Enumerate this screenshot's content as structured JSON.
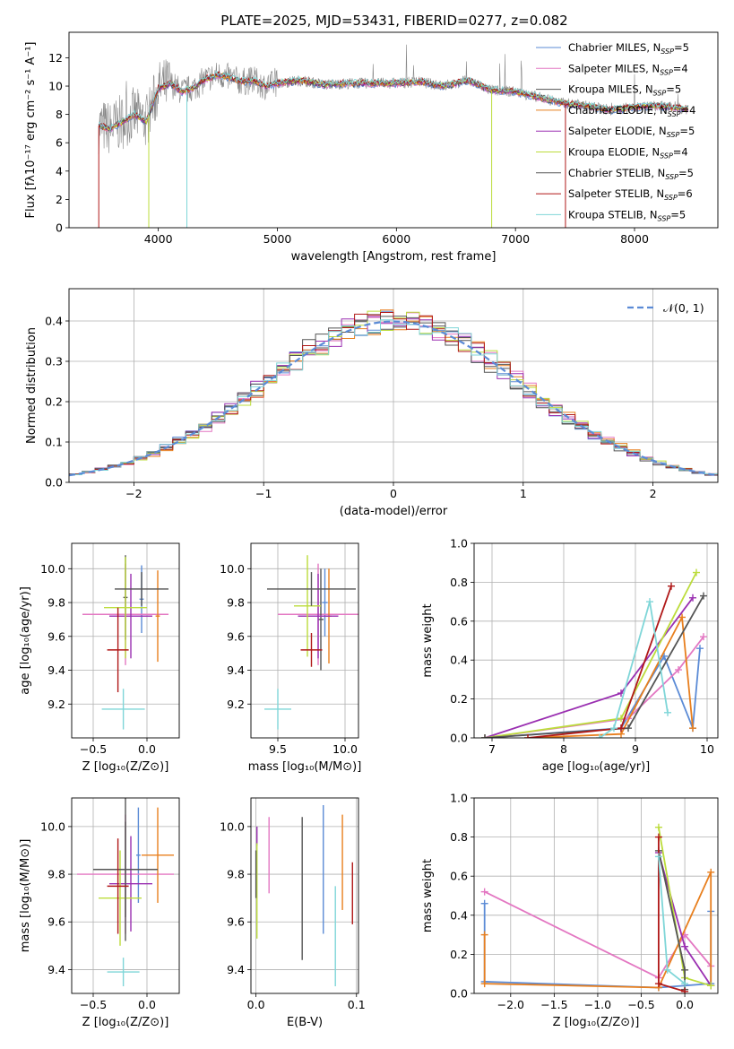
{
  "figure": {
    "title": "PLATE=2025, MJD=53431, FIBERID=0277, z=0.082"
  },
  "colors": {
    "chabrier_miles": "#5b8bd6",
    "salpeter_miles": "#e377c2",
    "kroupa_miles": "#555555",
    "chabrier_elodie": "#e87f1e",
    "salpeter_elodie": "#9a2fb1",
    "kroupa_elodie": "#bcdc3c",
    "chabrier_stelib": "#555555",
    "salpeter_stelib": "#b01818",
    "kroupa_stelib": "#7fd6d8"
  },
  "chart_data": [
    {
      "id": "spectrum",
      "type": "line",
      "xlabel": "wavelength [Angstrom, rest frame]",
      "ylabel": "Flux [fλ10⁻¹⁷ erg cm⁻² s⁻¹ A⁻¹]",
      "xlim": [
        3250,
        8700
      ],
      "ylim": [
        0,
        13.8
      ],
      "xticks": [
        "4000",
        "5000",
        "6000",
        "7000",
        "8000"
      ],
      "yticks": [
        "0",
        "2",
        "4",
        "6",
        "8",
        "10",
        "12"
      ],
      "legend_placement": "right",
      "legend": [
        "Chabrier MILES, N_SSP=5",
        "Salpeter MILES, N_SSP=4",
        "Kroupa MILES, N_SSP=5",
        "Chabrier ELODIE, N_SSP=4",
        "Salpeter ELODIE, N_SSP=5",
        "Kroupa ELODIE, N_SSP=4",
        "Chabrier STELIB, N_SSP=5",
        "Salpeter STELIB, N_SSP=6",
        "Kroupa STELIB, N_SSP=5"
      ],
      "data_x": [
        3500,
        3600,
        3700,
        3800,
        3900,
        4000,
        4100,
        4200,
        4300,
        4400,
        4500,
        4600,
        4700,
        4800,
        4900,
        5000,
        5200,
        5400,
        5600,
        5800,
        6000,
        6200,
        6400,
        6600,
        6800,
        7000,
        7200,
        7400,
        7600,
        7800,
        8000,
        8200,
        8400
      ],
      "data_y": [
        7.2,
        7.0,
        7.5,
        8.0,
        7.5,
        9.8,
        10.2,
        9.6,
        9.9,
        10.5,
        10.8,
        10.6,
        10.3,
        10.4,
        10.0,
        10.2,
        10.4,
        10.1,
        10.2,
        10.2,
        10.2,
        10.3,
        10.0,
        10.4,
        9.7,
        9.6,
        9.2,
        8.8,
        8.6,
        8.3,
        8.5,
        8.6,
        8.4
      ]
    },
    {
      "id": "residuals",
      "type": "bar",
      "xlabel": "(data-model)/error",
      "ylabel": "Normed distribution",
      "xlim": [
        -2.5,
        2.5
      ],
      "ylim": [
        0,
        0.48
      ],
      "xticks": [
        "−2",
        "−1",
        "0",
        "1",
        "2"
      ],
      "yticks": [
        "0.0",
        "0.1",
        "0.2",
        "0.3",
        "0.4"
      ],
      "legend": [
        "𝒩(0, 1)"
      ],
      "bin_width": 0.1,
      "series_offsets": [
        0.02,
        -0.015,
        0.01,
        -0.02,
        0.015,
        -0.01,
        0.025,
        -0.005,
        0.005
      ]
    },
    {
      "id": "age_vs_Z",
      "type": "scatter",
      "xlabel": "Z [log₁₀(Z/Z⊙)]",
      "ylabel": "age  [log₁₀(age/yr)]",
      "xlim": [
        -0.7,
        0.3
      ],
      "ylim": [
        9.0,
        10.15
      ],
      "xticks": [
        "−0.5",
        "0.0"
      ],
      "yticks": [
        "9.2",
        "9.4",
        "9.6",
        "9.8",
        "10.0"
      ],
      "points": [
        {
          "x": -0.05,
          "y": 9.82,
          "xerr": 0.02,
          "yerr": 0.2
        },
        {
          "x": -0.2,
          "y": 9.73,
          "xerr": 0.4,
          "yerr": 0.3
        },
        {
          "x": -0.2,
          "y": 9.83,
          "xerr": 0.02,
          "yerr": 0.25
        },
        {
          "x": 0.1,
          "y": 9.72,
          "xerr": 0.02,
          "yerr": 0.27
        },
        {
          "x": -0.15,
          "y": 9.72,
          "xerr": 0.2,
          "yerr": 0.25
        },
        {
          "x": -0.2,
          "y": 9.77,
          "xerr": 0.2,
          "yerr": 0.3
        },
        {
          "x": -0.05,
          "y": 9.88,
          "xerr": 0.25,
          "yerr": 0.1
        },
        {
          "x": -0.27,
          "y": 9.52,
          "xerr": 0.1,
          "yerr": 0.25
        },
        {
          "x": -0.22,
          "y": 9.17,
          "xerr": 0.2,
          "yerr": 0.12
        }
      ]
    },
    {
      "id": "age_vs_mass",
      "type": "scatter",
      "xlabel": "mass [log₁₀(M/M⊙)]",
      "ylabel": "",
      "xlim": [
        9.3,
        10.1
      ],
      "ylim": [
        9.0,
        10.15
      ],
      "xticks": [
        "9.5",
        "10.0"
      ],
      "yticks": [
        "9.2",
        "9.4",
        "9.6",
        "9.8",
        "10.0"
      ],
      "points": [
        {
          "x": 9.85,
          "y": 9.8,
          "xerr": 0.02,
          "yerr": 0.2
        },
        {
          "x": 9.8,
          "y": 9.73,
          "xerr": 0.3,
          "yerr": 0.3
        },
        {
          "x": 9.82,
          "y": 9.7,
          "xerr": 0.02,
          "yerr": 0.3
        },
        {
          "x": 9.88,
          "y": 9.72,
          "xerr": 0.02,
          "yerr": 0.28
        },
        {
          "x": 9.8,
          "y": 9.72,
          "xerr": 0.15,
          "yerr": 0.25
        },
        {
          "x": 9.72,
          "y": 9.78,
          "xerr": 0.1,
          "yerr": 0.3
        },
        {
          "x": 9.75,
          "y": 9.88,
          "xerr": 0.33,
          "yerr": 0.1
        },
        {
          "x": 9.75,
          "y": 9.52,
          "xerr": 0.08,
          "yerr": 0.1
        },
        {
          "x": 9.5,
          "y": 9.17,
          "xerr": 0.1,
          "yerr": 0.12
        }
      ]
    },
    {
      "id": "weight_vs_age",
      "type": "line",
      "xlabel": "age  [log₁₀(age/yr)]",
      "ylabel": "mass weight",
      "xlim": [
        6.75,
        10.15
      ],
      "ylim": [
        0,
        1.0
      ],
      "xticks": [
        "7",
        "8",
        "9",
        "10"
      ],
      "yticks": [
        "0.0",
        "0.2",
        "0.4",
        "0.6",
        "0.8",
        "1.0"
      ],
      "series": [
        {
          "color": "chabrier_miles",
          "x": [
            6.9,
            8.8,
            9.4,
            9.8,
            9.9
          ],
          "y": [
            0.0,
            0.05,
            0.42,
            0.05,
            0.46
          ]
        },
        {
          "color": "salpeter_miles",
          "x": [
            6.9,
            8.9,
            9.6,
            9.95
          ],
          "y": [
            0.0,
            0.1,
            0.35,
            0.52
          ]
        },
        {
          "color": "chabrier_elodie",
          "x": [
            7.5,
            8.8,
            9.65,
            9.8
          ],
          "y": [
            0.0,
            0.02,
            0.62,
            0.05
          ]
        },
        {
          "color": "salpeter_elodie",
          "x": [
            6.9,
            8.8,
            9.8
          ],
          "y": [
            0.0,
            0.23,
            0.72
          ]
        },
        {
          "color": "kroupa_elodie",
          "x": [
            6.9,
            8.8,
            9.85
          ],
          "y": [
            0.0,
            0.1,
            0.85
          ]
        },
        {
          "color": "chabrier_stelib",
          "x": [
            6.9,
            8.9,
            9.95
          ],
          "y": [
            0.0,
            0.05,
            0.73
          ]
        },
        {
          "color": "salpeter_stelib",
          "x": [
            7.5,
            8.8,
            9.5
          ],
          "y": [
            0.0,
            0.05,
            0.78
          ]
        },
        {
          "color": "kroupa_stelib",
          "x": [
            8.5,
            8.7,
            9.2,
            9.45
          ],
          "y": [
            0.0,
            0.05,
            0.7,
            0.13
          ]
        }
      ]
    },
    {
      "id": "mass_vs_Z",
      "type": "scatter",
      "xlabel": "Z [log₁₀(Z/Z⊙)]",
      "ylabel": "mass [log₁₀(M/M⊙)]",
      "xlim": [
        -0.7,
        0.3
      ],
      "ylim": [
        9.3,
        10.12
      ],
      "xticks": [
        "−0.5",
        "0.0"
      ],
      "yticks": [
        "9.4",
        "9.6",
        "9.8",
        "10.0"
      ],
      "points": [
        {
          "x": -0.08,
          "y": 9.88,
          "xerr": 0.02,
          "yerr": 0.2
        },
        {
          "x": -0.2,
          "y": 9.8,
          "xerr": 0.45,
          "yerr": 0.25
        },
        {
          "x": -0.2,
          "y": 9.82,
          "xerr": 0.3,
          "yerr": 0.2
        },
        {
          "x": 0.1,
          "y": 9.88,
          "xerr": 0.15,
          "yerr": 0.2
        },
        {
          "x": -0.15,
          "y": 9.76,
          "xerr": 0.2,
          "yerr": 0.2
        },
        {
          "x": -0.25,
          "y": 9.7,
          "xerr": 0.2,
          "yerr": 0.2
        },
        {
          "x": -0.2,
          "y": 9.82,
          "xerr": 0.3,
          "yerr": 0.3
        },
        {
          "x": -0.27,
          "y": 9.75,
          "xerr": 0.1,
          "yerr": 0.2
        },
        {
          "x": -0.22,
          "y": 9.39,
          "xerr": 0.15,
          "yerr": 0.06
        }
      ]
    },
    {
      "id": "mass_vs_ebv",
      "type": "scatter",
      "xlabel": "E(B-V)",
      "ylabel": "",
      "xlim": [
        -0.005,
        0.102
      ],
      "ylim": [
        9.3,
        10.12
      ],
      "xticks": [
        "0.0",
        "0.1"
      ],
      "yticks": [
        "9.4",
        "9.6",
        "9.8",
        "10.0"
      ],
      "points": [
        {
          "x": 0.067,
          "y": 9.82,
          "xerr": 0,
          "yerr": 0.27
        },
        {
          "x": 0.013,
          "y": 9.88,
          "xerr": 0,
          "yerr": 0.16
        },
        {
          "x": 0.046,
          "y": 9.74,
          "xerr": 0,
          "yerr": 0.3
        },
        {
          "x": 0.086,
          "y": 9.85,
          "xerr": 0,
          "yerr": 0.2
        },
        {
          "x": 0.001,
          "y": 9.96,
          "xerr": 0,
          "yerr": 0.04
        },
        {
          "x": 0.001,
          "y": 9.73,
          "xerr": 0,
          "yerr": 0.2
        },
        {
          "x": 0.0,
          "y": 9.8,
          "xerr": 0,
          "yerr": 0.1
        },
        {
          "x": 0.096,
          "y": 9.72,
          "xerr": 0,
          "yerr": 0.13
        },
        {
          "x": 0.079,
          "y": 9.54,
          "xerr": 0,
          "yerr": 0.21
        }
      ]
    },
    {
      "id": "weight_vs_Z",
      "type": "line",
      "xlabel": "Z [log₁₀(Z/Z⊙)]",
      "ylabel": "mass weight",
      "xlim": [
        -2.42,
        0.38
      ],
      "ylim": [
        0,
        1.0
      ],
      "xticks": [
        "−2.0",
        "−1.5",
        "−1.0",
        "−0.5",
        "0.0"
      ],
      "yticks": [
        "0.0",
        "0.2",
        "0.4",
        "0.6",
        "0.8",
        "1.0"
      ],
      "series": [
        {
          "color": "chabrier_miles",
          "x": [
            -2.3,
            -2.3,
            -0.3,
            0.3,
            0.3
          ],
          "y": [
            0.46,
            0.06,
            0.03,
            0.05,
            0.42
          ]
        },
        {
          "color": "salpeter_miles",
          "x": [
            -2.3,
            -0.3,
            0.0,
            0.3
          ],
          "y": [
            0.52,
            0.08,
            0.3,
            0.14
          ]
        },
        {
          "color": "chabrier_elodie",
          "x": [
            -2.3,
            -2.3,
            -0.3,
            0.3,
            0.3
          ],
          "y": [
            0.3,
            0.05,
            0.03,
            0.62,
            0.04
          ]
        },
        {
          "color": "salpeter_elodie",
          "x": [
            -0.3,
            0.0,
            0.3
          ],
          "y": [
            0.72,
            0.24,
            0.04
          ]
        },
        {
          "color": "kroupa_elodie",
          "x": [
            -0.3,
            0.0,
            0.3
          ],
          "y": [
            0.85,
            0.08,
            0.04
          ]
        },
        {
          "color": "chabrier_stelib",
          "x": [
            -0.3,
            0.0,
            0.0
          ],
          "y": [
            0.73,
            0.12,
            0.02
          ]
        },
        {
          "color": "salpeter_stelib",
          "x": [
            -0.3,
            -0.3,
            0.0
          ],
          "y": [
            0.8,
            0.05,
            0.01
          ]
        },
        {
          "color": "kroupa_stelib",
          "x": [
            -0.3,
            -0.2,
            0.0
          ],
          "y": [
            0.7,
            0.12,
            0.05
          ]
        }
      ]
    }
  ]
}
